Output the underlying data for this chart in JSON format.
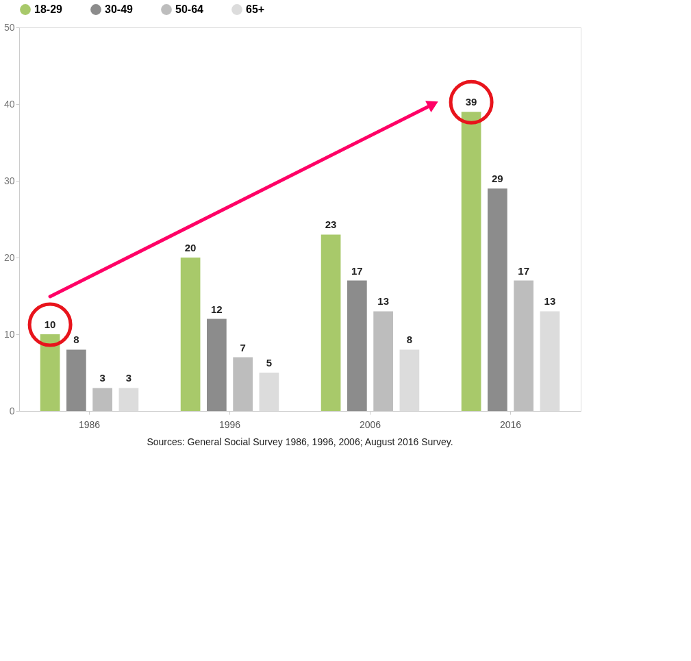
{
  "chart_data": {
    "type": "bar",
    "categories": [
      "1986",
      "1996",
      "2006",
      "2016"
    ],
    "series": [
      {
        "name": "18-29",
        "color": "#a8c96a",
        "values": [
          10,
          20,
          23,
          39
        ]
      },
      {
        "name": "30-49",
        "color": "#8c8c8c",
        "values": [
          8,
          12,
          17,
          29
        ]
      },
      {
        "name": "50-64",
        "color": "#bdbdbd",
        "values": [
          3,
          7,
          13,
          17
        ]
      },
      {
        "name": "65+",
        "color": "#dcdcdc",
        "values": [
          3,
          5,
          8,
          13
        ]
      }
    ],
    "ylim": [
      0,
      50
    ],
    "yticks": [
      0,
      10,
      20,
      30,
      40,
      50
    ],
    "grid": false,
    "legend": "top",
    "data_labels": true,
    "annotations": [
      "Sources: General Social Survey 1986, 1996, 2006; August 2016 Survey."
    ]
  }
}
